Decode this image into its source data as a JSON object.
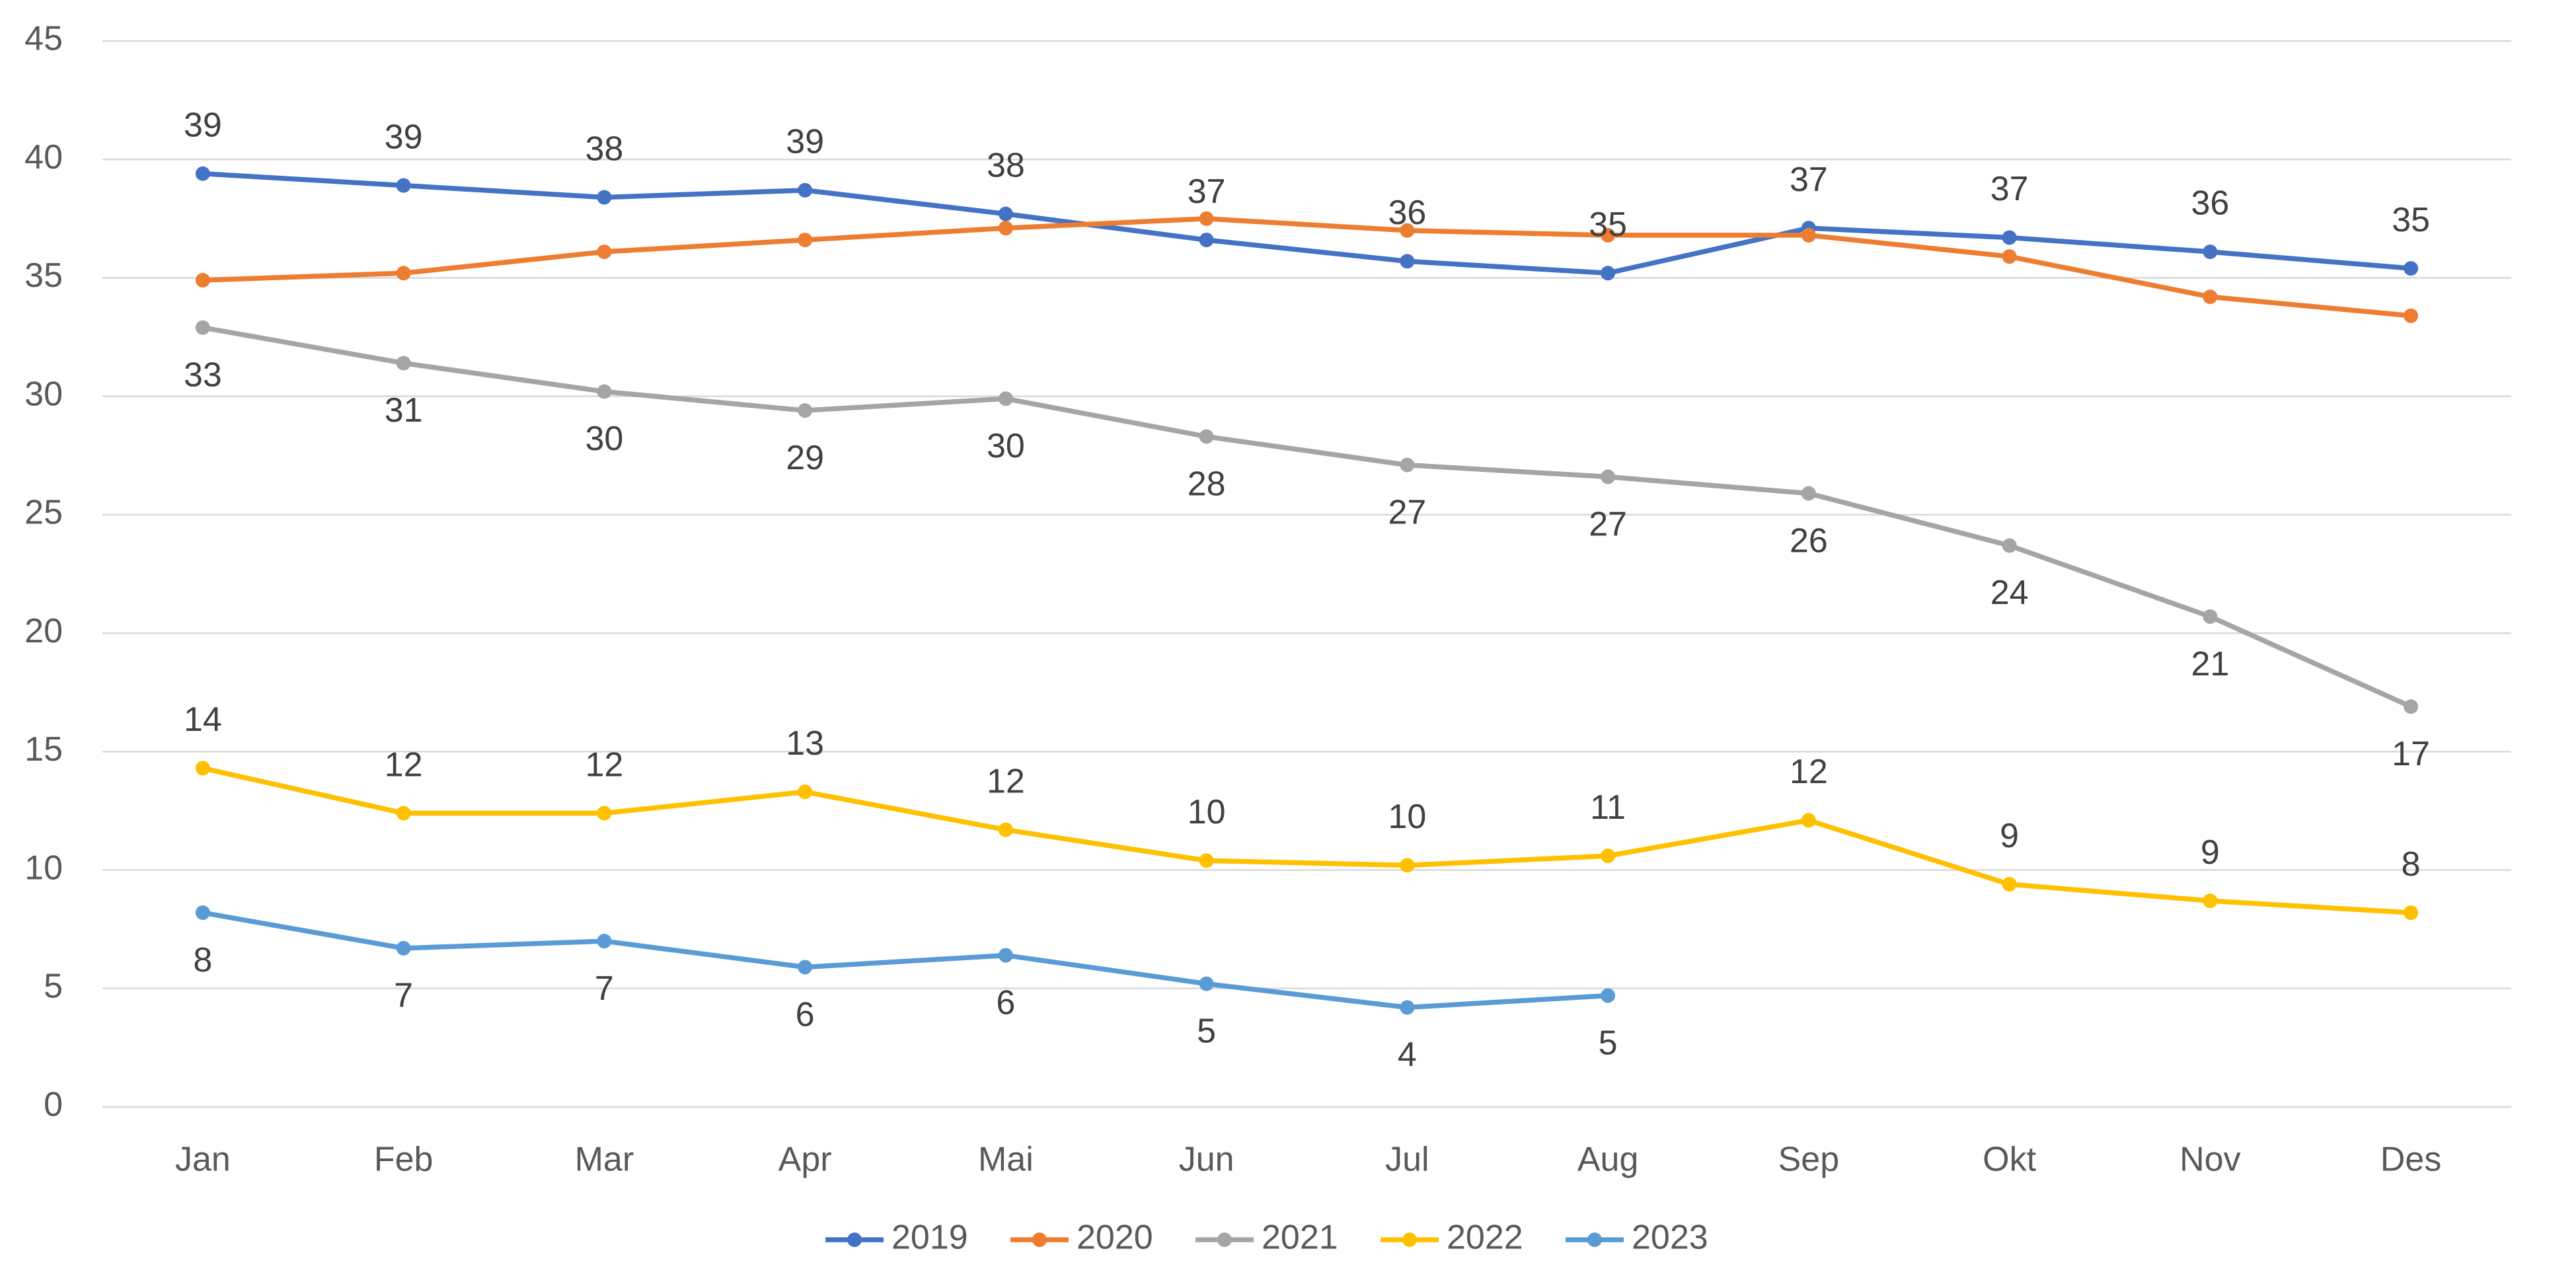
{
  "chart_data": {
    "type": "line",
    "categories": [
      "Jan",
      "Feb",
      "Mar",
      "Apr",
      "Mai",
      "Jun",
      "Jul",
      "Aug",
      "Sep",
      "Okt",
      "Nov",
      "Des"
    ],
    "series": [
      {
        "name": "2019",
        "color": "#4472c4",
        "label_position": "above",
        "values": [
          39.4,
          38.9,
          38.4,
          38.7,
          37.7,
          36.6,
          35.7,
          35.2,
          37.1,
          36.7,
          36.1,
          35.4
        ],
        "value_labels": [
          "39",
          "39",
          "38",
          "39",
          "38",
          "37",
          "36",
          "35",
          "37",
          "37",
          "36",
          "35"
        ]
      },
      {
        "name": "2020",
        "color": "#ed7d31",
        "values": [
          34.9,
          35.2,
          36.1,
          36.6,
          37.1,
          37.5,
          37.0,
          36.8,
          36.8,
          35.9,
          34.2,
          33.4
        ]
      },
      {
        "name": "2021",
        "color": "#a5a5a5",
        "label_position": "below",
        "values": [
          32.9,
          31.4,
          30.2,
          29.4,
          29.9,
          28.3,
          27.1,
          26.6,
          25.9,
          23.7,
          20.7,
          16.9
        ],
        "value_labels": [
          "33",
          "31",
          "30",
          "29",
          "30",
          "28",
          "27",
          "27",
          "26",
          "24",
          "21",
          "17"
        ]
      },
      {
        "name": "2022",
        "color": "#ffc000",
        "label_position": "above",
        "values": [
          14.3,
          12.4,
          12.4,
          13.3,
          11.7,
          10.4,
          10.2,
          10.6,
          12.1,
          9.4,
          8.7,
          8.2
        ],
        "value_labels": [
          "14",
          "12",
          "12",
          "13",
          "12",
          "10",
          "10",
          "11",
          "12",
          "9",
          "9",
          "8"
        ]
      },
      {
        "name": "2023",
        "color": "#5b9bd5",
        "label_position": "below",
        "values": [
          8.2,
          6.7,
          7.0,
          5.9,
          6.4,
          5.2,
          4.2,
          4.7,
          null,
          null,
          null,
          null
        ],
        "value_labels": [
          "8",
          "7",
          "7",
          "6",
          "6",
          "5",
          "4",
          "5",
          null,
          null,
          null,
          null
        ]
      }
    ],
    "ylim": [
      0,
      45
    ],
    "yticks": [
      0,
      5,
      10,
      15,
      20,
      25,
      30,
      35,
      40,
      45
    ],
    "grid": true,
    "legend": "bottom"
  }
}
